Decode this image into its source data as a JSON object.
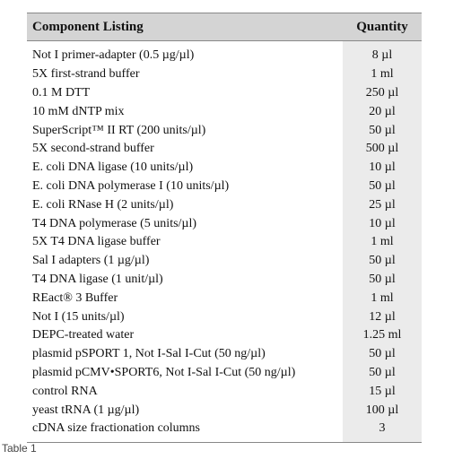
{
  "table": {
    "header": [
      "Component Listing",
      "Quantity"
    ],
    "rows": [
      [
        "Not I primer-adapter (0.5 µg/µl)",
        "8 µl"
      ],
      [
        "5X first-strand buffer",
        "1 ml"
      ],
      [
        "0.1 M DTT",
        "250 µl"
      ],
      [
        "10 mM dNTP mix",
        "20 µl"
      ],
      [
        "SuperScript™ II RT (200 units/µl)",
        "50 µl"
      ],
      [
        "5X second-strand buffer",
        "500 µl"
      ],
      [
        "E. coli DNA ligase (10 units/µl)",
        "10 µl"
      ],
      [
        "E. coli DNA polymerase I (10 units/µl)",
        "50 µl"
      ],
      [
        "E. coli RNase H (2 units/µl)",
        "25 µl"
      ],
      [
        "T4 DNA polymerase (5 units/µl)",
        "10 µl"
      ],
      [
        "5X T4 DNA ligase buffer",
        "1 ml"
      ],
      [
        "Sal I adapters (1 µg/µl)",
        "50 µl"
      ],
      [
        "T4 DNA ligase (1 unit/µl)",
        "50 µl"
      ],
      [
        "REact® 3 Buffer",
        "1 ml"
      ],
      [
        "Not I (15 units/µl)",
        "12 µl"
      ],
      [
        "DEPC-treated water",
        "1.25 ml"
      ],
      [
        "plasmid pSPORT 1, Not I-Sal I-Cut (50 ng/µl)",
        "50 µl"
      ],
      [
        "plasmid pCMV•SPORT6, Not I-Sal I-Cut (50 ng/µl)",
        "50 µl"
      ],
      [
        "control RNA",
        "15 µl"
      ],
      [
        "yeast tRNA (1 µg/µl)",
        "100 µl"
      ],
      [
        "cDNA size fractionation columns",
        "3"
      ]
    ]
  },
  "caption": "Table 1"
}
